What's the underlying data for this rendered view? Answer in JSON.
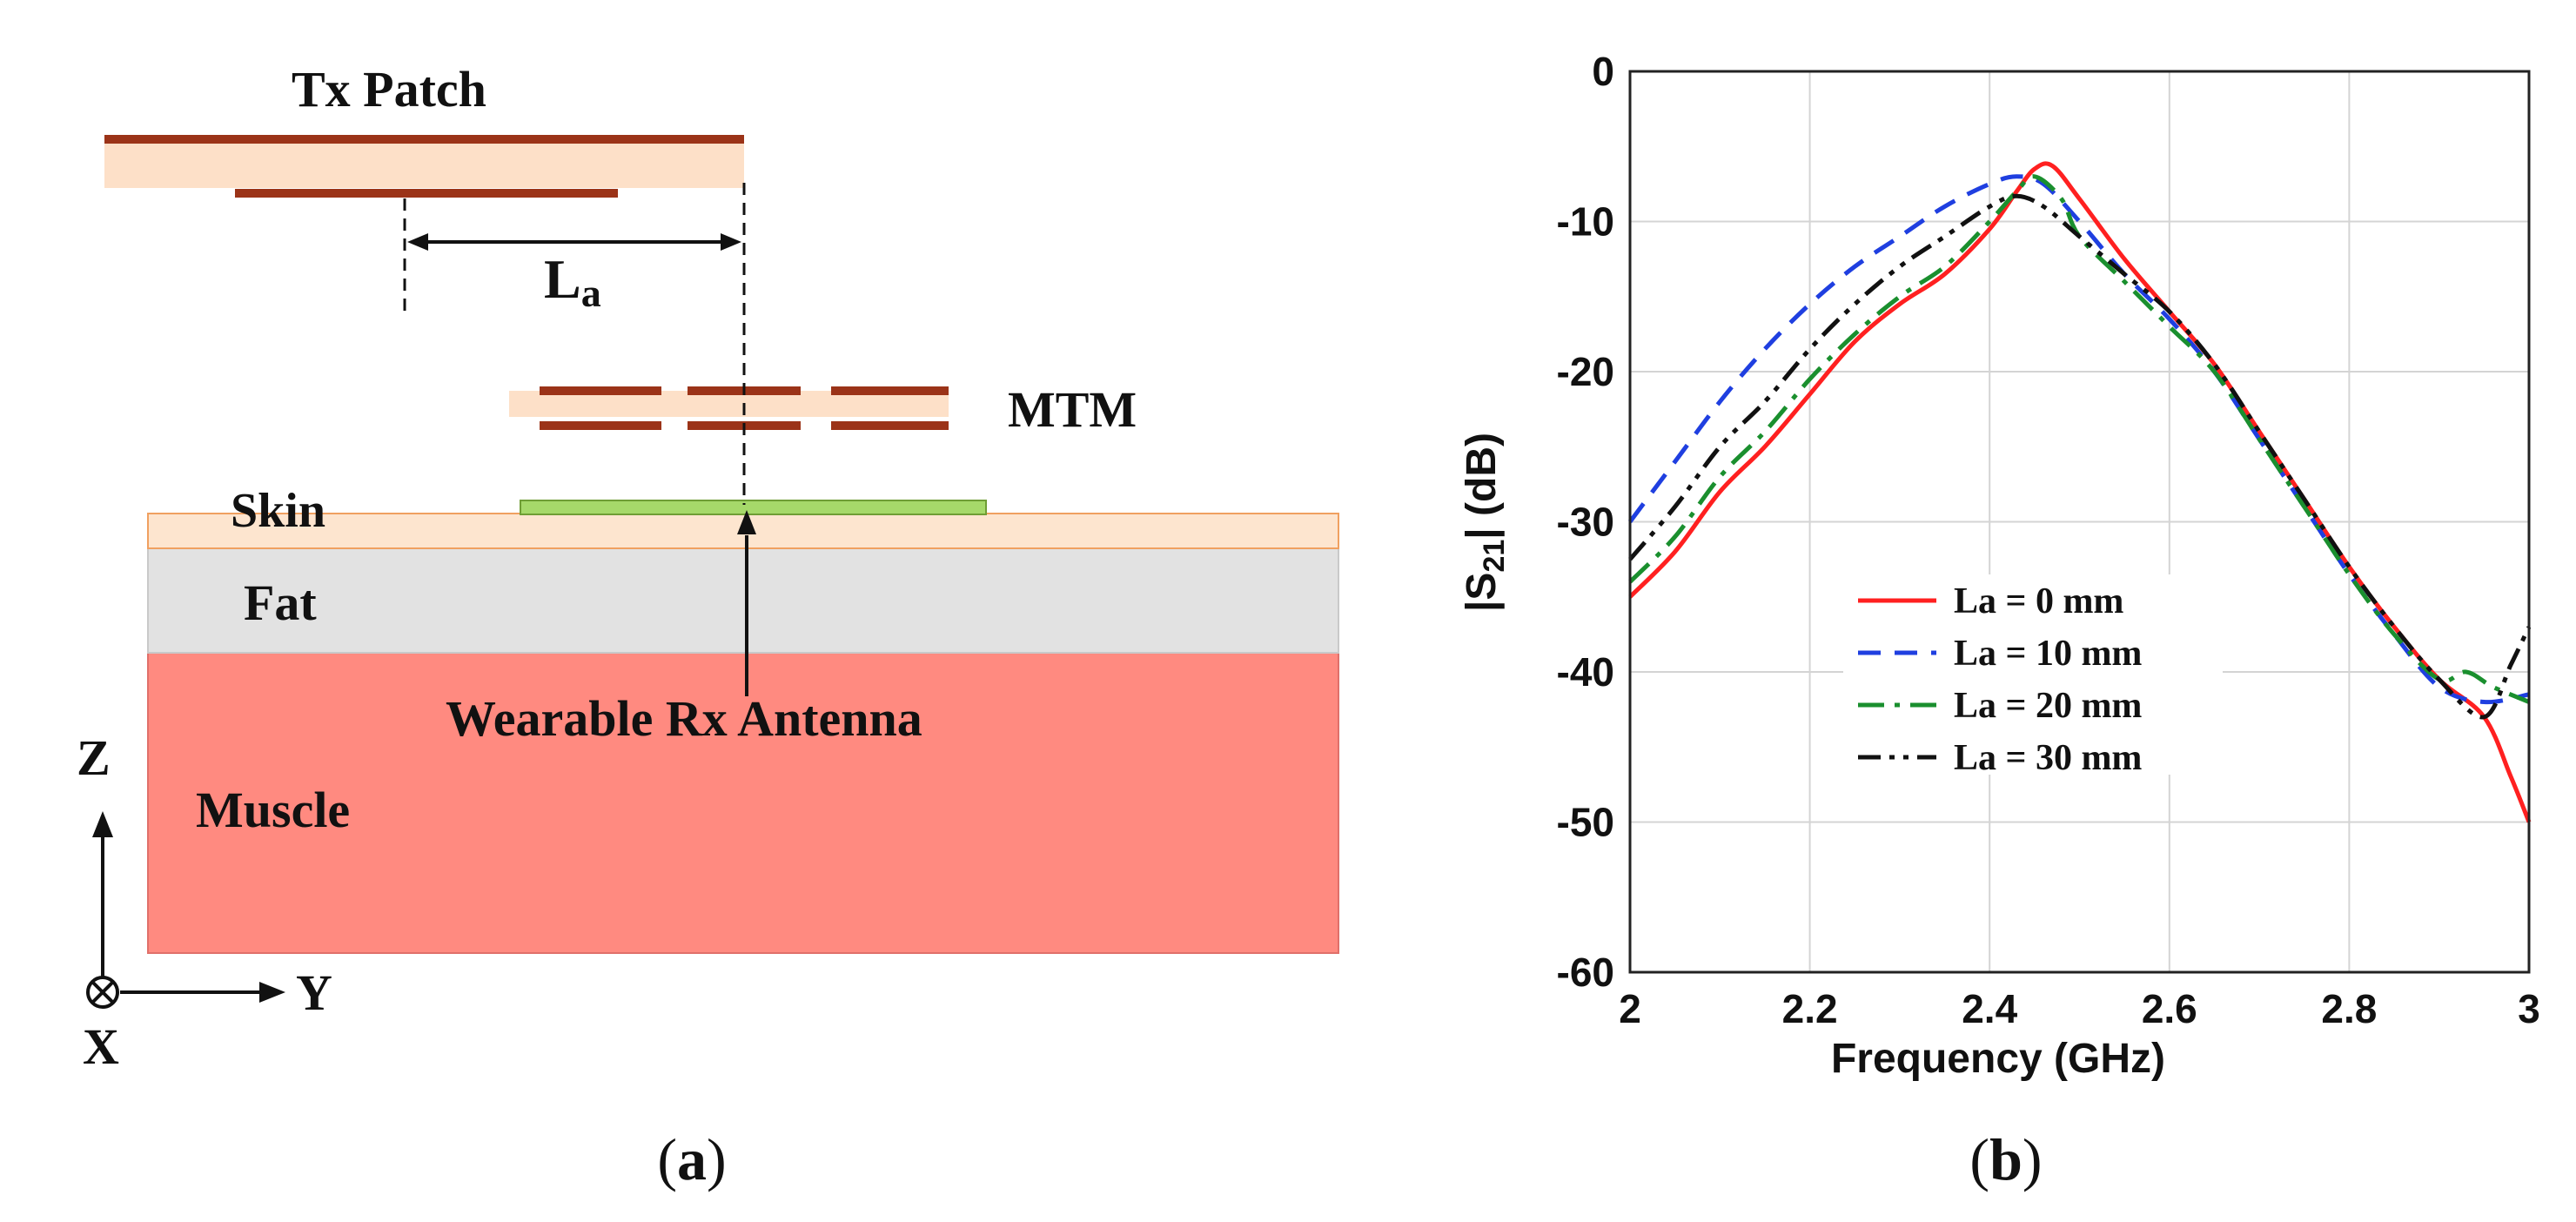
{
  "panel_a": {
    "caption_open": "(",
    "caption_letter": "a",
    "caption_close": ")",
    "tx_label": "Tx Patch",
    "la_label_main": "L",
    "la_label_sub": "a",
    "mtm_label": "MTM",
    "skin_label": "Skin",
    "fat_label": "Fat",
    "muscle_label": "Muscle",
    "rx_label": "Wearable Rx Antenna",
    "axis_z": "Z",
    "axis_y": "Y",
    "axis_x": "X",
    "colors": {
      "copper": "#9b3318",
      "substrate": "#fde0c8",
      "skin": "#fde5cf",
      "fat": "#e2e2e2",
      "muscle": "#ff8a80",
      "rx": "#a6d96a"
    }
  },
  "panel_b": {
    "caption_open": "(",
    "caption_letter": "b",
    "caption_close": ")"
  },
  "chart_data": {
    "type": "line",
    "title": "",
    "xlabel": "Frequency (GHz)",
    "ylabel_pre": "|S",
    "ylabel_sub": "21",
    "ylabel_post": "| (dB)",
    "xlim": [
      2,
      3
    ],
    "ylim": [
      -60,
      0
    ],
    "xticks": [
      2,
      2.2,
      2.4,
      2.6,
      2.8,
      3
    ],
    "xtick_labels": [
      "2",
      "2.2",
      "2.4",
      "2.6",
      "2.8",
      "3"
    ],
    "yticks": [
      0,
      -10,
      -20,
      -30,
      -40,
      -50,
      -60
    ],
    "ytick_labels": [
      "0",
      "-10",
      "-20",
      "-30",
      "-40",
      "-50",
      "-60"
    ],
    "grid": true,
    "legend_position": "lower-left",
    "series": [
      {
        "name": "La = 0 mm",
        "color": "#ff2020",
        "dash": "solid",
        "points": [
          [
            2.0,
            -35
          ],
          [
            2.05,
            -32
          ],
          [
            2.1,
            -28
          ],
          [
            2.15,
            -25
          ],
          [
            2.2,
            -21.5
          ],
          [
            2.25,
            -18
          ],
          [
            2.3,
            -15.5
          ],
          [
            2.35,
            -13.5
          ],
          [
            2.4,
            -10.5
          ],
          [
            2.43,
            -8
          ],
          [
            2.45,
            -6.5
          ],
          [
            2.47,
            -6.3
          ],
          [
            2.5,
            -8.5
          ],
          [
            2.55,
            -12.5
          ],
          [
            2.6,
            -16
          ],
          [
            2.65,
            -19.5
          ],
          [
            2.7,
            -24
          ],
          [
            2.75,
            -28.5
          ],
          [
            2.8,
            -33
          ],
          [
            2.85,
            -37
          ],
          [
            2.9,
            -40.5
          ],
          [
            2.95,
            -43
          ],
          [
            2.98,
            -47
          ],
          [
            3.0,
            -50
          ]
        ]
      },
      {
        "name": "La = 10 mm",
        "color": "#1f3fe0",
        "dash": "dash",
        "points": [
          [
            2.0,
            -30
          ],
          [
            2.05,
            -26
          ],
          [
            2.1,
            -22
          ],
          [
            2.15,
            -18.5
          ],
          [
            2.2,
            -15.5
          ],
          [
            2.25,
            -13
          ],
          [
            2.3,
            -11
          ],
          [
            2.35,
            -9
          ],
          [
            2.4,
            -7.5
          ],
          [
            2.43,
            -7
          ],
          [
            2.46,
            -7.5
          ],
          [
            2.5,
            -10
          ],
          [
            2.55,
            -13.5
          ],
          [
            2.6,
            -16.5
          ],
          [
            2.65,
            -20
          ],
          [
            2.7,
            -24.5
          ],
          [
            2.75,
            -29
          ],
          [
            2.8,
            -33.5
          ],
          [
            2.85,
            -37.5
          ],
          [
            2.9,
            -41
          ],
          [
            2.95,
            -42
          ],
          [
            3.0,
            -41.5
          ]
        ]
      },
      {
        "name": "La = 20 mm",
        "color": "#1a8f2e",
        "dash": "dashdot",
        "points": [
          [
            2.0,
            -34
          ],
          [
            2.05,
            -31
          ],
          [
            2.1,
            -27
          ],
          [
            2.15,
            -24
          ],
          [
            2.2,
            -20.5
          ],
          [
            2.25,
            -17.5
          ],
          [
            2.3,
            -15
          ],
          [
            2.35,
            -13
          ],
          [
            2.4,
            -10
          ],
          [
            2.43,
            -8
          ],
          [
            2.45,
            -7
          ],
          [
            2.48,
            -8.5
          ],
          [
            2.5,
            -11
          ],
          [
            2.55,
            -14
          ],
          [
            2.6,
            -17
          ],
          [
            2.65,
            -20
          ],
          [
            2.7,
            -24.5
          ],
          [
            2.75,
            -29
          ],
          [
            2.8,
            -33.5
          ],
          [
            2.85,
            -37.5
          ],
          [
            2.9,
            -40.5
          ],
          [
            2.93,
            -40
          ],
          [
            2.96,
            -41
          ],
          [
            3.0,
            -42
          ]
        ]
      },
      {
        "name": "La = 30 mm",
        "color": "#111111",
        "dash": "dashdotdot",
        "points": [
          [
            2.0,
            -32.5
          ],
          [
            2.05,
            -29
          ],
          [
            2.1,
            -25
          ],
          [
            2.15,
            -22
          ],
          [
            2.2,
            -18.5
          ],
          [
            2.25,
            -15.5
          ],
          [
            2.3,
            -13
          ],
          [
            2.35,
            -11
          ],
          [
            2.4,
            -9
          ],
          [
            2.43,
            -8.3
          ],
          [
            2.46,
            -9
          ],
          [
            2.5,
            -11
          ],
          [
            2.55,
            -13.5
          ],
          [
            2.6,
            -16
          ],
          [
            2.65,
            -19.5
          ],
          [
            2.7,
            -24
          ],
          [
            2.75,
            -28.5
          ],
          [
            2.8,
            -33
          ],
          [
            2.85,
            -37
          ],
          [
            2.9,
            -40.5
          ],
          [
            2.95,
            -43
          ],
          [
            2.98,
            -39.5
          ],
          [
            3.0,
            -37
          ]
        ]
      }
    ]
  }
}
